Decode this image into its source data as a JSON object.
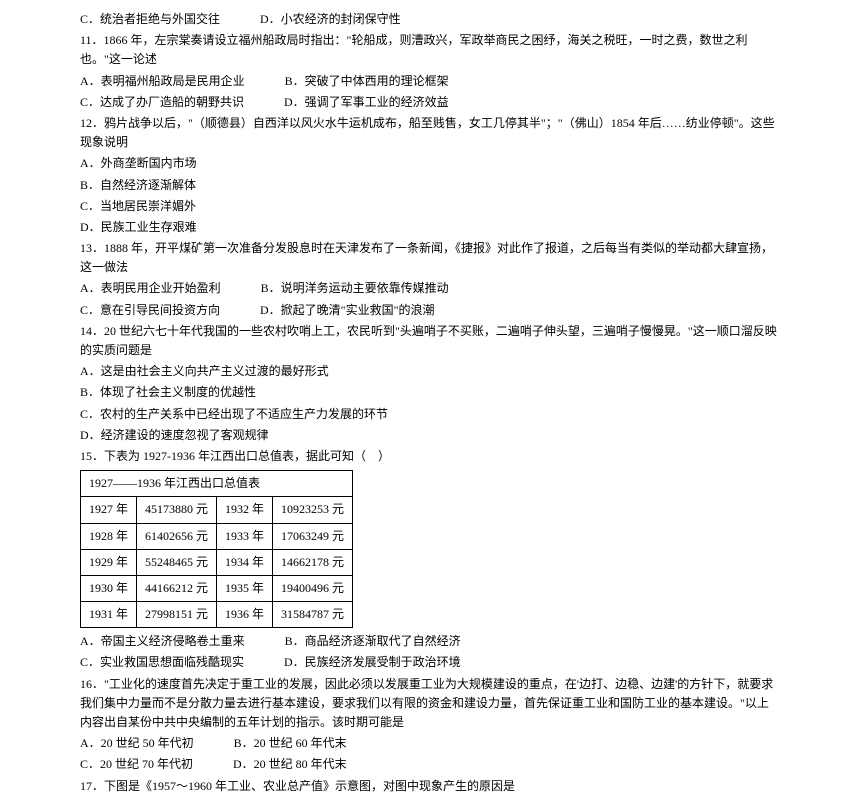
{
  "q10_cd": {
    "c": "C．统治者拒绝与外国交往",
    "d": "D．小农经济的封闭保守性"
  },
  "q11": {
    "stem": "11．1866 年，左宗棠奏请设立福州船政局时指出：\"轮船成，则漕政兴，军政举商民之困纾，海关之税旺，一时之费，数世之利也。\"这一论述",
    "a": "A．表明福州船政局是民用企业",
    "b": "B．突破了中体西用的理论框架",
    "c": "C．达成了办厂造船的朝野共识",
    "d": "D．强调了军事工业的经济效益"
  },
  "q12": {
    "stem": "12．鸦片战争以后，\"（顺德县）自西洋以风火水牛运机成布，船至贱售，女工几停其半\"；\"（佛山）1854 年后……纺业停顿\"。这些现象说明",
    "a": "A．外商垄断国内市场",
    "b": "B．自然经济逐渐解体",
    "c": "C．当地居民崇洋媚外",
    "d": "D．民族工业生存艰难"
  },
  "q13": {
    "stem": "13．1888 年，开平煤矿第一次准备分发股息时在天津发布了一条新闻，《捷报》对此作了报道，之后每当有类似的举动都大肆宣扬，这一做法",
    "a": "A．表明民用企业开始盈利",
    "b": "B．说明洋务运动主要依靠传媒推动",
    "c": "C．意在引导民间投资方向",
    "d": "D．掀起了晚清\"实业救国\"的浪潮"
  },
  "q14": {
    "stem": "14．20 世纪六七十年代我国的一些农村吹哨上工，农民听到\"头遍哨子不买账，二遍哨子伸头望，三遍哨子慢慢晃。\"这一顺口溜反映的实质问题是",
    "a": "A．这是由社会主义向共产主义过渡的最好形式",
    "b": "B．体现了社会主义制度的优越性",
    "c": "C．农村的生产关系中已经出现了不适应生产力发展的环节",
    "d": "D．经济建设的速度忽视了客观规律"
  },
  "q15": {
    "stem": "15．下表为 1927-1936 年江西出口总值表，据此可知（　）",
    "table_title": "1927——1936 年江西出口总值表",
    "rows": [
      [
        "1927 年",
        "45173880 元",
        "1932 年",
        "10923253 元"
      ],
      [
        "1928 年",
        "61402656 元",
        "1933 年",
        "17063249 元"
      ],
      [
        "1929 年",
        "55248465 元",
        "1934 年",
        "14662178 元"
      ],
      [
        "1930 年",
        "44166212 元",
        "1935 年",
        "19400496 元"
      ],
      [
        "1931 年",
        "27998151 元",
        "1936 年",
        "31584787 元"
      ]
    ],
    "a": "A．帝国主义经济侵略卷土重来",
    "b": "B．商品经济逐渐取代了自然经济",
    "c": "C．实业救国思想面临残酷现实",
    "d": "D．民族经济发展受制于政治环境"
  },
  "q16": {
    "stem": "16．\"工业化的速度首先决定于重工业的发展，因此必须以发展重工业为大规模建设的重点，在'边打、边稳、边建'的方针下，就要求我们集中力量而不是分散力量去进行基本建设，要求我们以有限的资金和建设力量，首先保证重工业和国防工业的基本建设。\"以上内容出自某份中共中央编制的五年计划的指示。该时期可能是",
    "a": "A．20 世纪 50 年代初",
    "b": "B．20 世纪 60 年代末",
    "c": "C．20 世纪 70 年代初",
    "d": "D．20 世纪 80 年代末"
  },
  "q17": {
    "stem": "17．下图是《1957～1960 年工业、农业总产值》示意图，对图中现象产生的原因是"
  }
}
